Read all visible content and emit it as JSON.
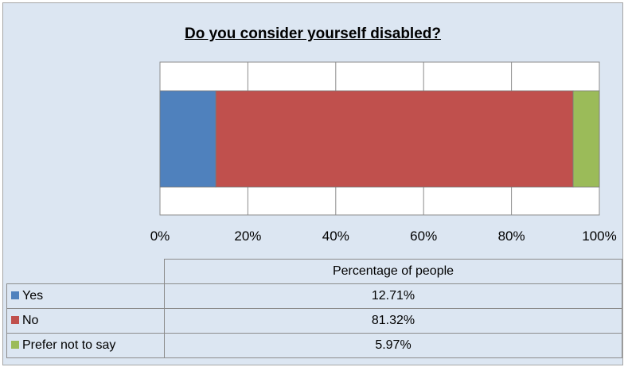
{
  "chart_data": {
    "type": "bar",
    "orientation": "horizontal-stacked-100",
    "title": "Do you consider yourself disabled?",
    "column_header": "Percentage of people",
    "x_ticks": [
      "0%",
      "20%",
      "40%",
      "60%",
      "80%",
      "100%"
    ],
    "xlim": [
      0,
      100
    ],
    "series": [
      {
        "name": "Yes",
        "value": 12.71,
        "label": "12.71%",
        "color": "#4f81bd"
      },
      {
        "name": "No",
        "value": 81.32,
        "label": "81.32%",
        "color": "#c0504d"
      },
      {
        "name": "Prefer not to say",
        "value": 5.97,
        "label": "5.97%",
        "color": "#9bbb59"
      }
    ],
    "grid": true,
    "legend": "data-table"
  }
}
